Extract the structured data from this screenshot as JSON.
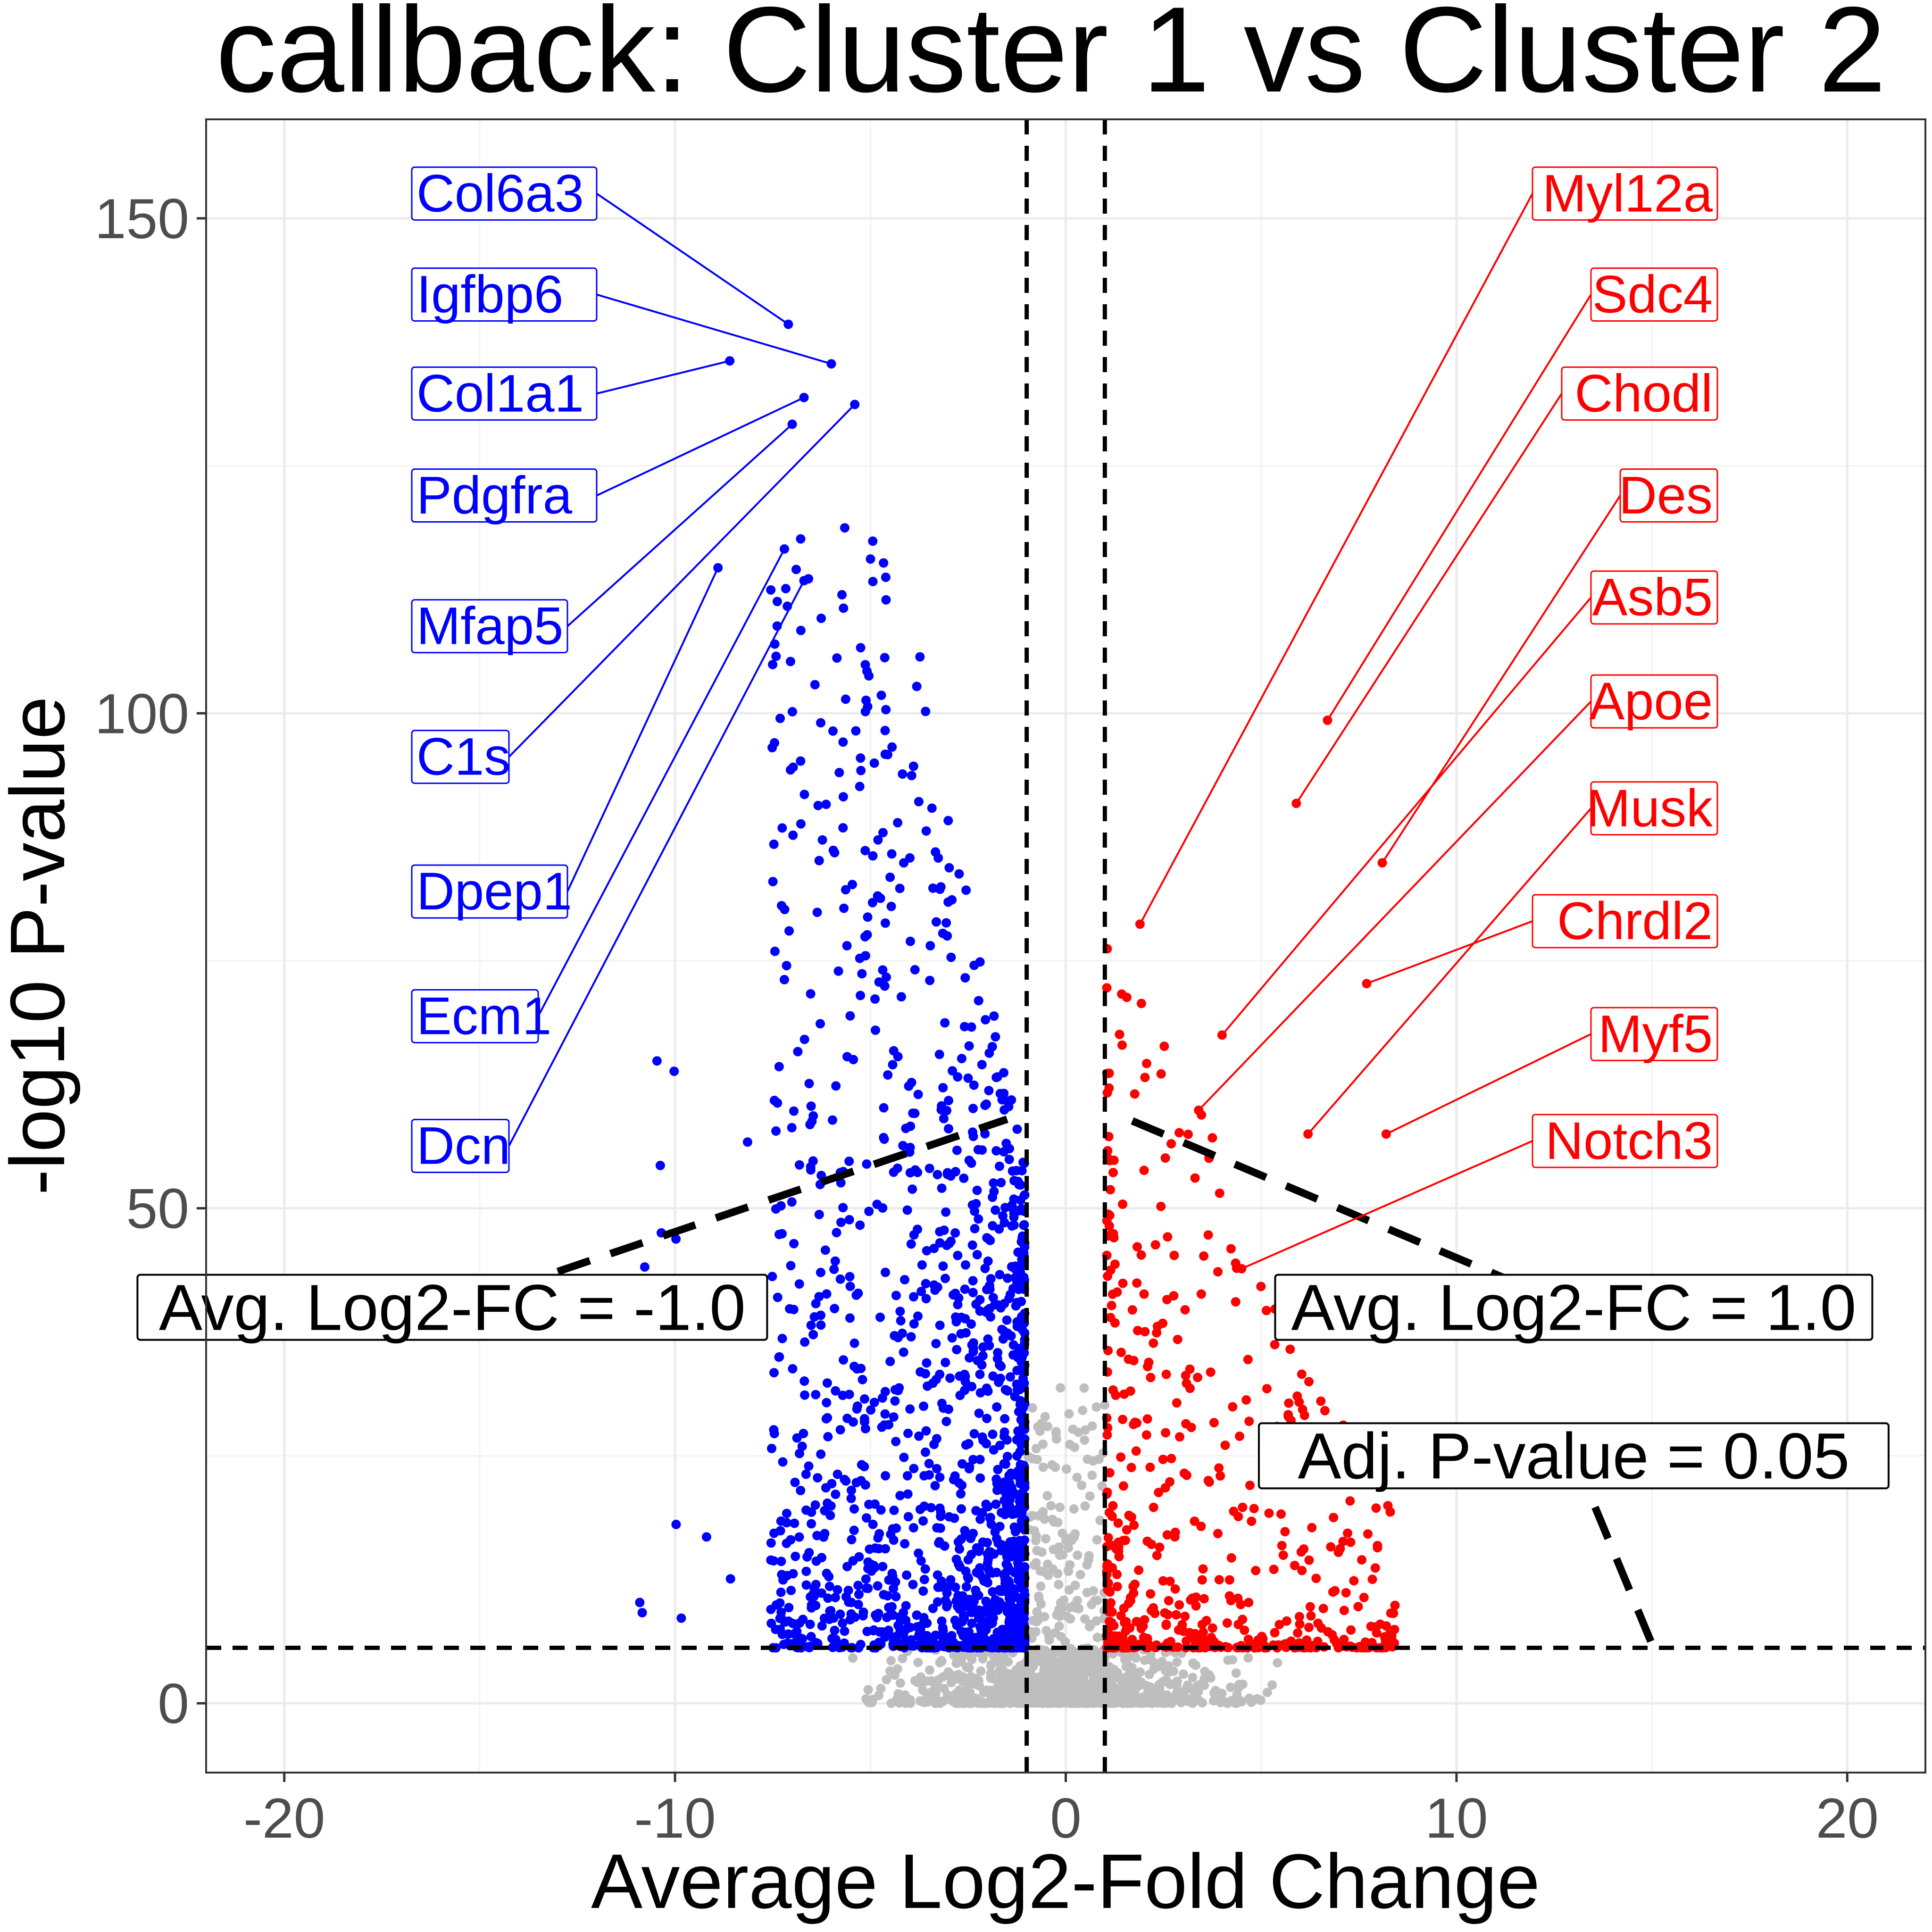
{
  "chart_data": {
    "type": "scatter",
    "title": "callback: Cluster 1 vs Cluster 2",
    "xlabel": "Average Log2-Fold Change",
    "ylabel": "-log10 P-value",
    "xlim": [
      -22,
      22
    ],
    "ylim": [
      -7,
      160
    ],
    "x_ticks": [
      -20,
      -10,
      0,
      10,
      20
    ],
    "y_ticks": [
      0,
      50,
      100,
      150
    ],
    "x_tick_labels": [
      "-20",
      "-10",
      "0",
      "10",
      "20"
    ],
    "y_tick_labels": [
      "0",
      "50",
      "100",
      "150"
    ],
    "grid": true,
    "colors": {
      "down": "#0000ff",
      "up": "#ff0000",
      "not_significant": "#bebebe",
      "threshold_line": "#000000"
    },
    "thresholds": {
      "log2fc_neg": -1.0,
      "log2fc_pos": 1.0,
      "neg_log10_p": 5.6
    },
    "annotations": [
      {
        "text": "Avg. Log2-FC = -1.0",
        "box_x": -15.7,
        "box_y": 40,
        "line_to": [
          -1.5,
          59
        ]
      },
      {
        "text": "Avg. Log2-FC = 1.0",
        "box_x": 13.0,
        "box_y": 40,
        "line_to": [
          1.6,
          59
        ]
      },
      {
        "text": "Adj. P-value = 0.05",
        "box_x": 13.0,
        "box_y": 25,
        "line_to": [
          15.0,
          6
        ]
      }
    ],
    "down_genes": [
      {
        "name": "Col6a3",
        "x": -7.1,
        "y": 139.3,
        "label_y": 152.5
      },
      {
        "name": "Igfbp6",
        "x": -6.0,
        "y": 135.3,
        "label_y": 142.3
      },
      {
        "name": "Col1a1",
        "x": -8.6,
        "y": 135.6,
        "label_y": 132.3
      },
      {
        "name": "Pdgfra",
        "x": -6.7,
        "y": 131.9,
        "label_y": 122.0
      },
      {
        "name": "Mfap5",
        "x": -7.0,
        "y": 129.2,
        "label_y": 108.8
      },
      {
        "name": "C1s",
        "x": -5.4,
        "y": 131.2,
        "label_y": 95.6
      },
      {
        "name": "Dpep1",
        "x": -8.9,
        "y": 114.7,
        "label_y": 82.0
      },
      {
        "name": "Ecm1",
        "x": -7.2,
        "y": 116.6,
        "label_y": 69.4
      },
      {
        "name": "Dcn",
        "x": -6.7,
        "y": 113.4,
        "label_y": 56.3
      }
    ],
    "up_genes": [
      {
        "name": "Myl12a",
        "x": 1.9,
        "y": 78.7,
        "label_y": 152.5
      },
      {
        "name": "Sdc4",
        "x": 6.7,
        "y": 99.3,
        "label_y": 142.3
      },
      {
        "name": "Chodl",
        "x": 5.9,
        "y": 90.9,
        "label_y": 132.3
      },
      {
        "name": "Des",
        "x": 8.1,
        "y": 84.9,
        "label_y": 122.0
      },
      {
        "name": "Asb5",
        "x": 4.0,
        "y": 67.5,
        "label_y": 111.7
      },
      {
        "name": "Apoe",
        "x": 3.4,
        "y": 59.9,
        "label_y": 101.2
      },
      {
        "name": "Musk",
        "x": 6.2,
        "y": 57.5,
        "label_y": 90.4
      },
      {
        "name": "Chrdl2",
        "x": 7.7,
        "y": 72.7,
        "label_y": 79.0
      },
      {
        "name": "Myf5",
        "x": 8.2,
        "y": 57.5,
        "label_y": 67.6
      },
      {
        "name": "Notch3",
        "x": 4.5,
        "y": 43.9,
        "label_y": 56.8
      }
    ]
  }
}
